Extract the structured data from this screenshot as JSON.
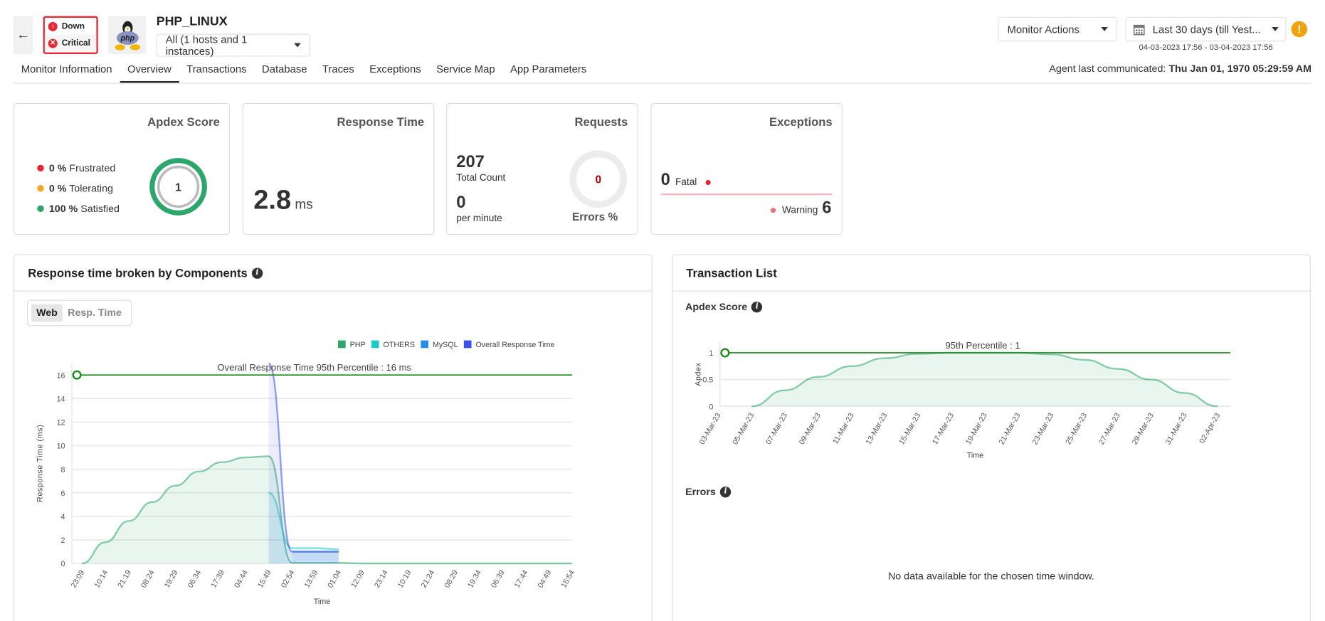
{
  "header": {
    "back_icon": "arrow-left-icon",
    "status": [
      {
        "label": "Down",
        "icon": "arrow-down-circle-icon"
      },
      {
        "label": "Critical",
        "icon": "x-circle-icon"
      }
    ],
    "monitor_name": "PHP_LINUX",
    "logo_text": "php",
    "instance_select": "All (1 hosts and 1 instances)",
    "monitor_actions": "Monitor Actions",
    "date_range_select": "Last 30 days (till Yest...",
    "date_range_text": "04-03-2023 17:56 - 03-04-2023 17:56",
    "agent_label": "Agent last communicated:",
    "agent_value": "Thu Jan 01, 1970 05:29:59 AM",
    "colors": {
      "status_red": "#e32b3a",
      "warning": "#f0a30a"
    }
  },
  "tabs": [
    {
      "label": "Monitor Information"
    },
    {
      "label": "Overview",
      "active": true
    },
    {
      "label": "Transactions"
    },
    {
      "label": "Database"
    },
    {
      "label": "Traces"
    },
    {
      "label": "Exceptions"
    },
    {
      "label": "Service Map"
    },
    {
      "label": "App Parameters"
    }
  ],
  "cards": {
    "apdex": {
      "title": "Apdex Score",
      "score": "1",
      "items": [
        {
          "value": "0 %",
          "label": "Frustrated",
          "color": "#e8242f"
        },
        {
          "value": "0 %",
          "label": "Tolerating",
          "color": "#f5a623"
        },
        {
          "value": "100 %",
          "label": "Satisfied",
          "color": "#2ca66a"
        }
      ]
    },
    "response": {
      "title": "Response Time",
      "value": "2.8",
      "unit": "ms"
    },
    "requests": {
      "title": "Requests",
      "total": "207",
      "total_label": "Total Count",
      "per_minute": "0",
      "per_minute_label": "per minute",
      "errors": "0",
      "errors_label": "Errors %"
    },
    "exceptions": {
      "title": "Exceptions",
      "fatal": "0",
      "fatal_label": "Fatal",
      "warning_label": "Warning",
      "warning": "6"
    }
  },
  "components_panel": {
    "title": "Response time broken by Components",
    "toggle": [
      "Web",
      "Resp. Time"
    ],
    "active_toggle": "Web"
  },
  "transaction_panel": {
    "title": "Transaction List",
    "apdex_label": "Apdex Score",
    "errors_label": "Errors",
    "errors_empty": "No data available for the chosen time window."
  },
  "chart_data": [
    {
      "type": "area",
      "xlabel": "Time",
      "ylabel": "Response Time (ms)",
      "ylim": [
        0,
        17
      ],
      "yticks": [
        0,
        2,
        4,
        6,
        8,
        10,
        12,
        14,
        16
      ],
      "grid": true,
      "legend": "top-right",
      "categories": [
        "23:09",
        "10:14",
        "21:19",
        "08:24",
        "19:29",
        "06:34",
        "17:39",
        "04:44",
        "15:49",
        "02:54",
        "13:59",
        "01:04",
        "12:09",
        "23:14",
        "10:19",
        "21:24",
        "08:29",
        "19:34",
        "06:39",
        "17:44",
        "04:49",
        "15:54"
      ],
      "series": [
        {
          "name": "PHP",
          "color": "#2ca66a",
          "values": [
            0,
            1.8,
            3.6,
            5.2,
            6.6,
            7.8,
            8.6,
            9.0,
            9.1,
            0.05,
            0.05,
            0.05,
            0,
            0,
            0,
            0,
            0,
            0,
            0,
            0,
            0,
            0
          ]
        },
        {
          "name": "OTHERS",
          "color": "#1ec8c8",
          "values": [
            null,
            null,
            null,
            null,
            null,
            null,
            null,
            null,
            6,
            1.3,
            1.3,
            1.2,
            null,
            null,
            null,
            null,
            null,
            null,
            null,
            null,
            null,
            null
          ]
        },
        {
          "name": "MySQL",
          "color": "#2b8cf0",
          "values": [
            null,
            null,
            null,
            null,
            null,
            null,
            null,
            null,
            null,
            1.0,
            1.0,
            1.0,
            null,
            null,
            null,
            null,
            null,
            null,
            null,
            null,
            null,
            null
          ]
        },
        {
          "name": "Overall Response Time",
          "color": "#3a50e8",
          "values": [
            null,
            null,
            null,
            null,
            null,
            null,
            null,
            null,
            17,
            1.0,
            1.0,
            1.0,
            null,
            null,
            null,
            null,
            null,
            null,
            null,
            null,
            null,
            null
          ]
        }
      ],
      "reference_line": {
        "value": 16,
        "label": "Overall Response Time 95th Percentile : 16 ms",
        "color": "#1a8a1a"
      }
    },
    {
      "type": "area",
      "xlabel": "Time",
      "ylabel": "Apdex",
      "ylim": [
        0,
        1.2
      ],
      "yticks": [
        0,
        0.5,
        1
      ],
      "grid": true,
      "categories": [
        "03-Mar-23",
        "05-Mar-23",
        "07-Mar-23",
        "09-Mar-23",
        "11-Mar-23",
        "13-Mar-23",
        "15-Mar-23",
        "17-Mar-23",
        "19-Mar-23",
        "21-Mar-23",
        "23-Mar-23",
        "25-Mar-23",
        "27-Mar-23",
        "29-Mar-23",
        "31-Mar-23",
        "02-Apr-23"
      ],
      "series": [
        {
          "color": "#2ca66a",
          "values": [
            null,
            0,
            0.3,
            0.55,
            0.75,
            0.9,
            0.98,
            1,
            1,
            1,
            0.97,
            0.87,
            0.7,
            0.5,
            0.25,
            0
          ]
        }
      ],
      "reference_line": {
        "value": 1,
        "label": "95th Percentile : 1",
        "color": "#1a8a1a"
      }
    }
  ]
}
